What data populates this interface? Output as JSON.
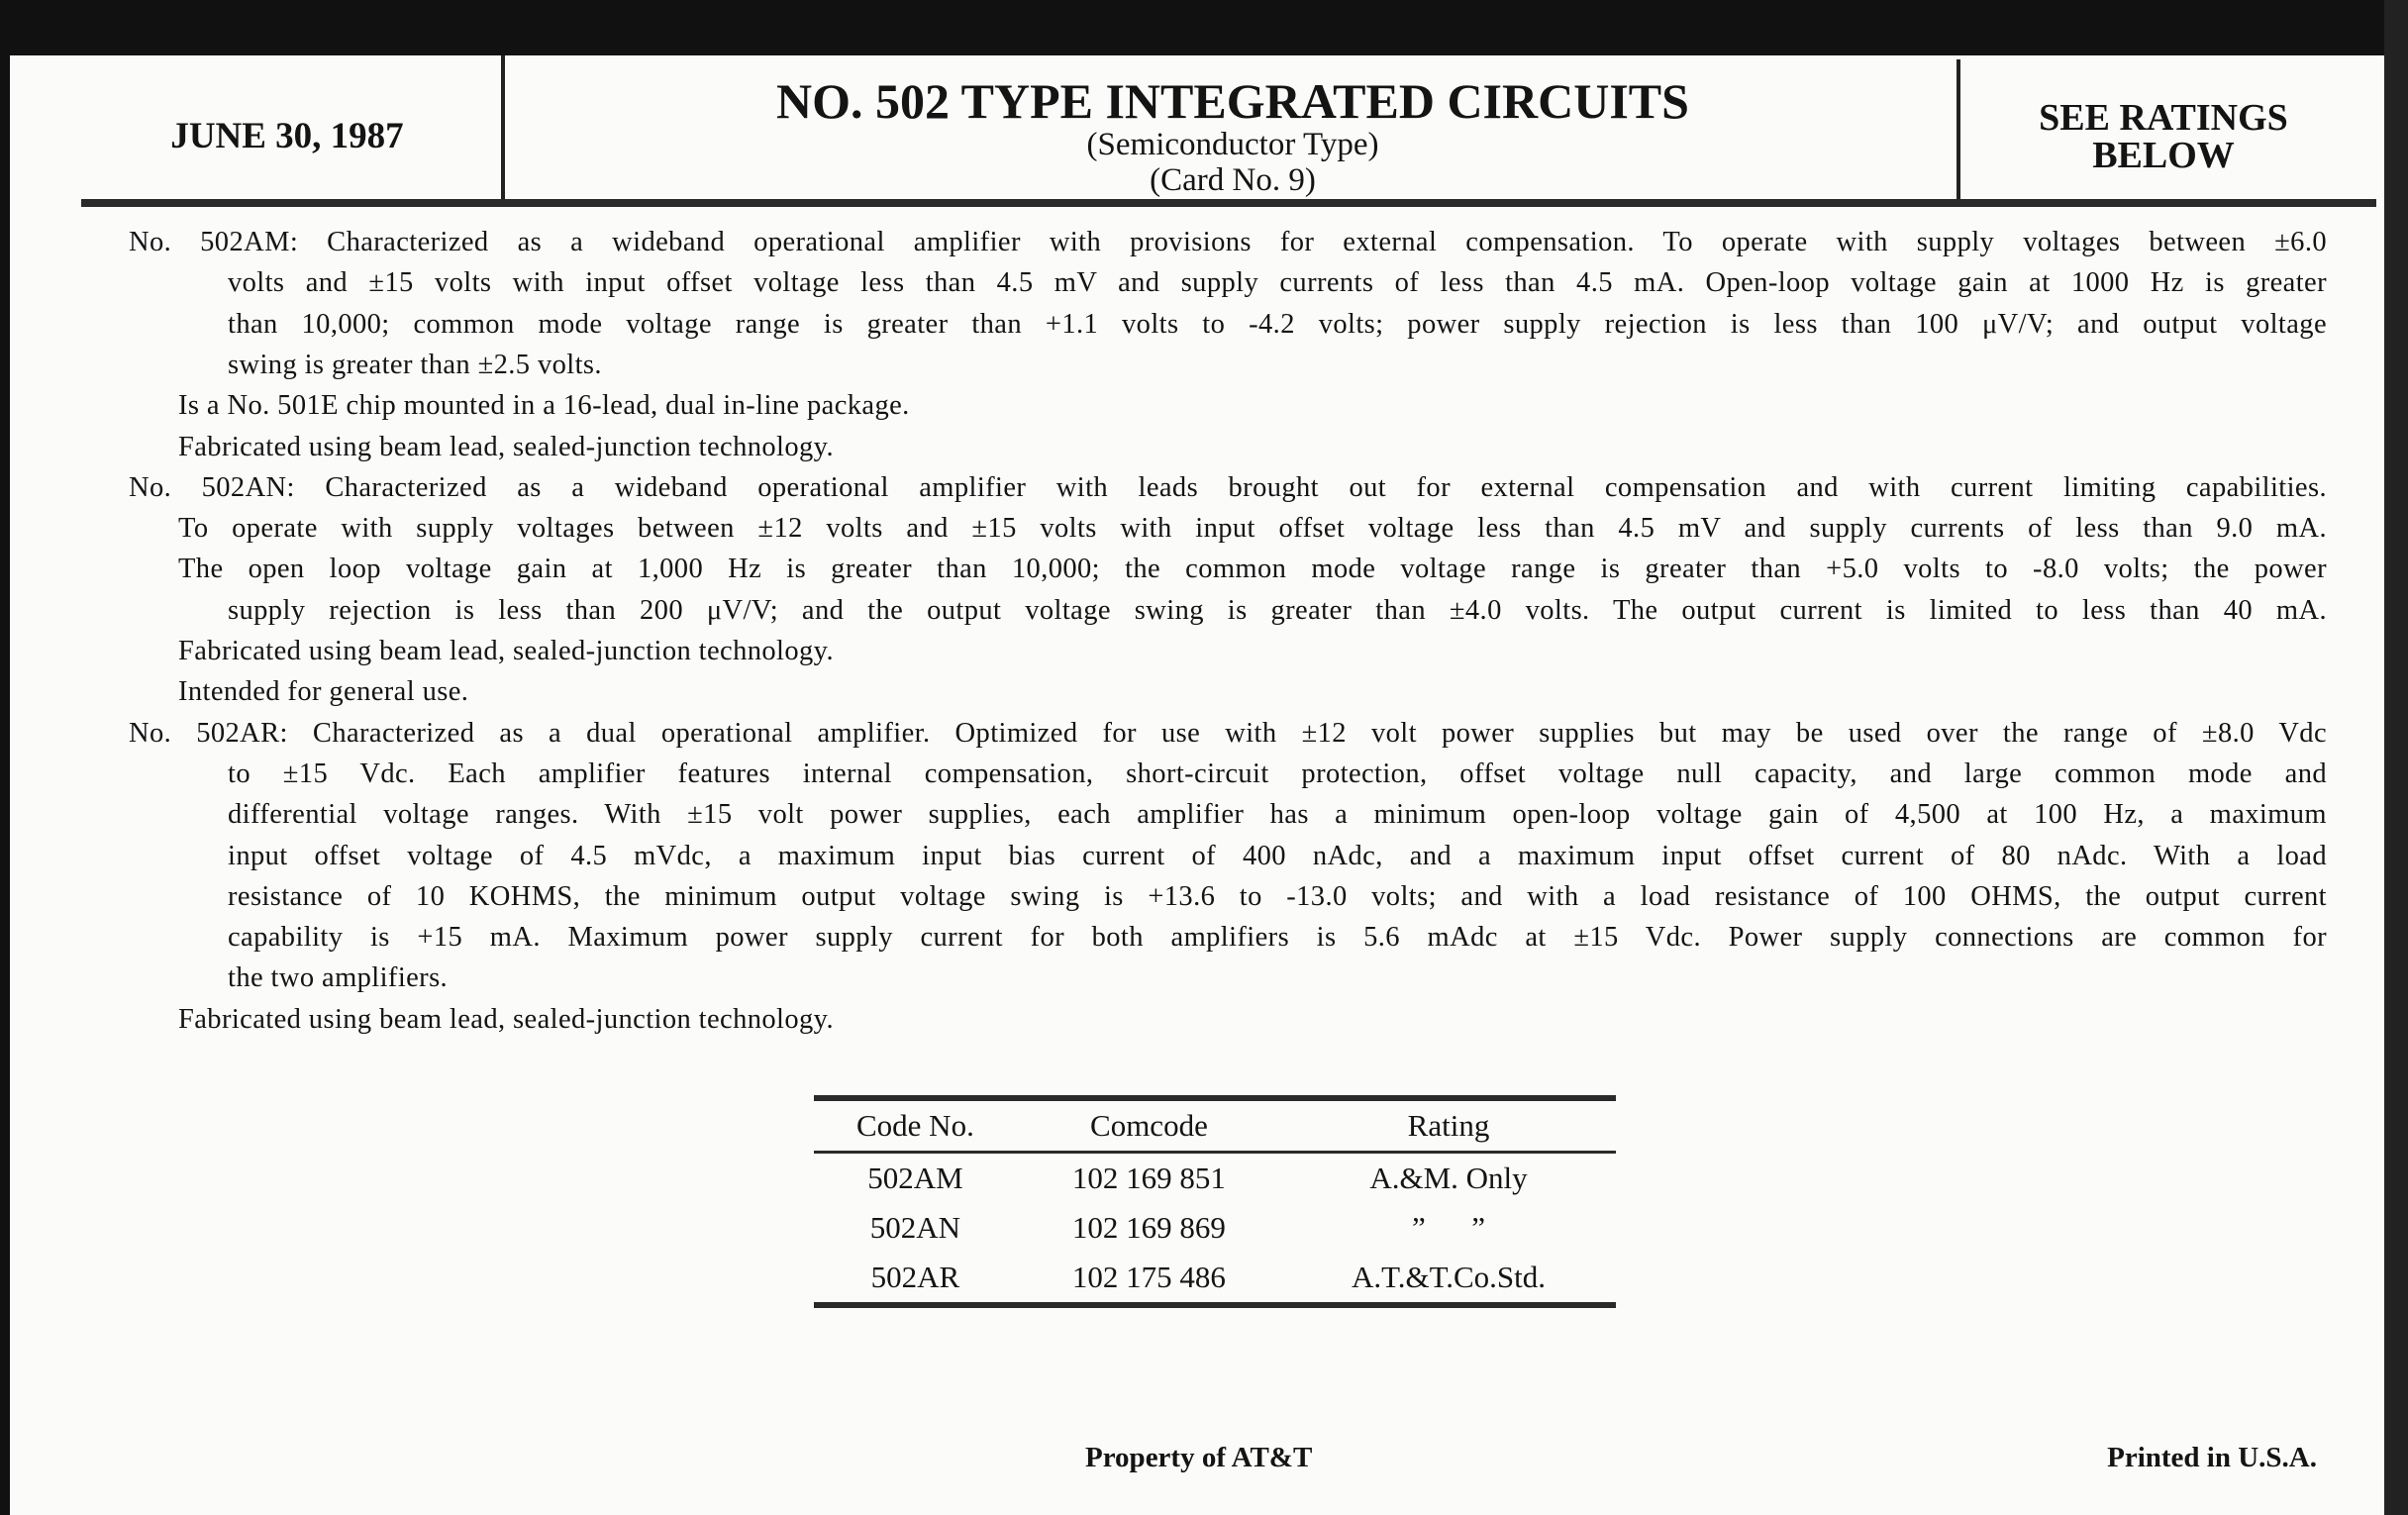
{
  "header": {
    "date": "JUNE 30, 1987",
    "title": "NO. 502 TYPE INTEGRATED CIRCUITS",
    "subtitle": "(Semiconductor Type)",
    "card": "(Card No. 9)",
    "ratings_line1": "SEE RATINGS",
    "ratings_line2": "BELOW"
  },
  "body_lines": [
    {
      "indent": 0,
      "justify": true,
      "text": "No. 502AM: Characterized as a wideband operational amplifier with provisions for external compensation. To operate with supply voltages between ±6.0"
    },
    {
      "indent": 2,
      "justify": true,
      "text": "volts and ±15 volts with input offset voltage less than 4.5 mV and supply currents of less than 4.5 mA. Open-loop voltage gain at 1000 Hz is greater"
    },
    {
      "indent": 2,
      "justify": true,
      "text": "than 10,000; common mode voltage range is greater than +1.1 volts to -4.2 volts; power supply rejection is less than 100 μV/V; and output voltage"
    },
    {
      "indent": 2,
      "justify": false,
      "text": "swing is greater than ±2.5 volts."
    },
    {
      "indent": 1,
      "justify": false,
      "text": "Is a No. 501E chip mounted in a 16-lead, dual in-line package."
    },
    {
      "indent": 1,
      "justify": false,
      "text": "Fabricated using beam lead, sealed-junction technology."
    },
    {
      "indent": 0,
      "justify": true,
      "text": "No. 502AN: Characterized as a wideband operational amplifier with leads brought out for external compensation and with current limiting capabilities."
    },
    {
      "indent": 1,
      "justify": true,
      "text": "To operate with supply voltages between ±12 volts and ±15 volts with input offset voltage less than 4.5 mV and supply currents of less than 9.0 mA."
    },
    {
      "indent": 1,
      "justify": true,
      "text": "The open loop voltage gain at 1,000 Hz is greater than 10,000; the common mode voltage range is greater than +5.0 volts to -8.0 volts; the power"
    },
    {
      "indent": 2,
      "justify": true,
      "text": "supply rejection is less than 200 μV/V; and the output voltage swing is greater than ±4.0 volts. The output current is limited to less than 40 mA."
    },
    {
      "indent": 1,
      "justify": false,
      "text": "Fabricated using beam lead, sealed-junction technology."
    },
    {
      "indent": 1,
      "justify": false,
      "text": "Intended for general use."
    },
    {
      "indent": 0,
      "justify": true,
      "text": "No. 502AR: Characterized as a dual operational amplifier. Optimized for use with ±12 volt power supplies but may be used over the range of ±8.0 Vdc"
    },
    {
      "indent": 2,
      "justify": true,
      "text": "to ±15 Vdc. Each amplifier features internal compensation, short-circuit protection, offset voltage null capacity, and large common mode and"
    },
    {
      "indent": 2,
      "justify": true,
      "text": "differential voltage ranges. With ±15 volt power supplies, each amplifier has a minimum open-loop voltage gain of 4,500 at 100 Hz, a maximum"
    },
    {
      "indent": 2,
      "justify": true,
      "text": "input offset voltage of 4.5 mVdc, a maximum input bias current of 400 nAdc, and a maximum input offset current of 80 nAdc. With a load"
    },
    {
      "indent": 2,
      "justify": true,
      "text": "resistance of 10 KOHMS, the minimum output voltage swing is +13.6 to -13.0 volts; and with a load resistance of 100 OHMS, the output current"
    },
    {
      "indent": 2,
      "justify": true,
      "text": "capability is +15 mA. Maximum power supply current for both amplifiers is 5.6 mAdc at ±15 Vdc. Power supply connections are common for"
    },
    {
      "indent": 2,
      "justify": false,
      "text": "the two amplifiers."
    },
    {
      "indent": 1,
      "justify": false,
      "text": "Fabricated using beam lead, sealed-junction technology."
    }
  ],
  "table": {
    "headers": [
      "Code No.",
      "Comcode",
      "Rating"
    ],
    "rows": [
      [
        "502AM",
        "102 169 851",
        "A.&M. Only"
      ],
      [
        "502AN",
        "102 169 869",
        "”      ”"
      ],
      [
        "502AR",
        "102 175 486",
        "A.T.&T.Co.Std."
      ]
    ]
  },
  "footer": {
    "property": "Property of AT&T",
    "printed": "Printed in U.S.A."
  }
}
